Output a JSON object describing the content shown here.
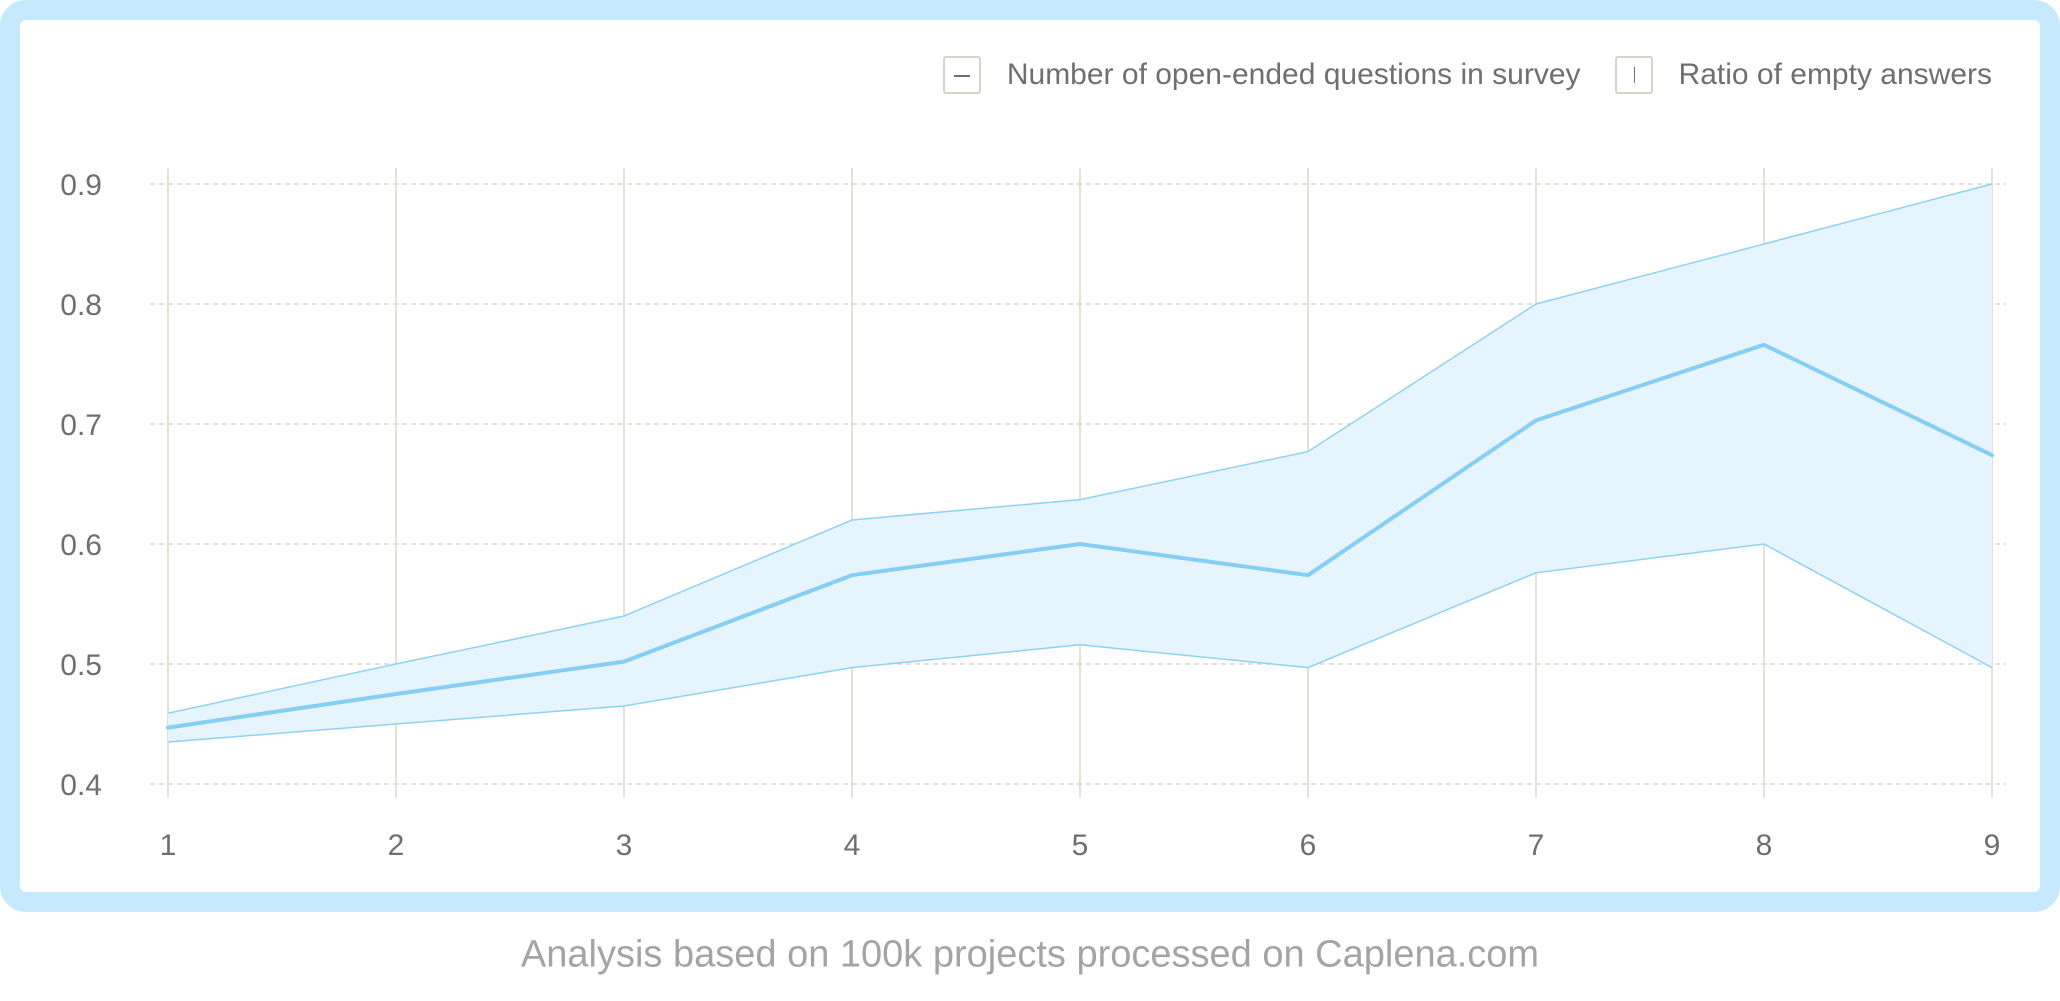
{
  "chart_data": {
    "type": "line",
    "x": [
      1,
      2,
      3,
      4,
      5,
      6,
      7,
      8,
      9
    ],
    "series": [
      {
        "name": "Ratio of empty answers",
        "values": [
          0.447,
          0.475,
          0.502,
          0.574,
          0.6,
          0.574,
          0.703,
          0.766,
          0.674
        ],
        "lower": [
          0.435,
          0.45,
          0.465,
          0.497,
          0.516,
          0.497,
          0.576,
          0.6,
          0.497
        ],
        "upper": [
          0.459,
          0.5,
          0.54,
          0.62,
          0.637,
          0.677,
          0.8,
          0.85,
          0.9
        ]
      }
    ],
    "xticks": [
      "1",
      "2",
      "3",
      "4",
      "5",
      "6",
      "7",
      "8",
      "9"
    ],
    "yticks": [
      "0.4",
      "0.5",
      "0.6",
      "0.7",
      "0.8",
      "0.9"
    ],
    "xlim": [
      1,
      9
    ],
    "ylim": [
      0.4,
      0.9
    ],
    "grid": true,
    "legend_position": "top-right",
    "colors": {
      "line": "#85cff5",
      "band_fill": "#e6f5fd",
      "band_stroke": "#8ed2f3",
      "frame": "#c6e9fd",
      "grid_h": "#d9d5cf",
      "grid_v": "#ddd9cf"
    }
  },
  "legend": {
    "x_label": "Number of open-ended questions in survey",
    "y_label": "Ratio of empty answers"
  },
  "caption": "Analysis based on 100k projects processed on Caplena.com"
}
